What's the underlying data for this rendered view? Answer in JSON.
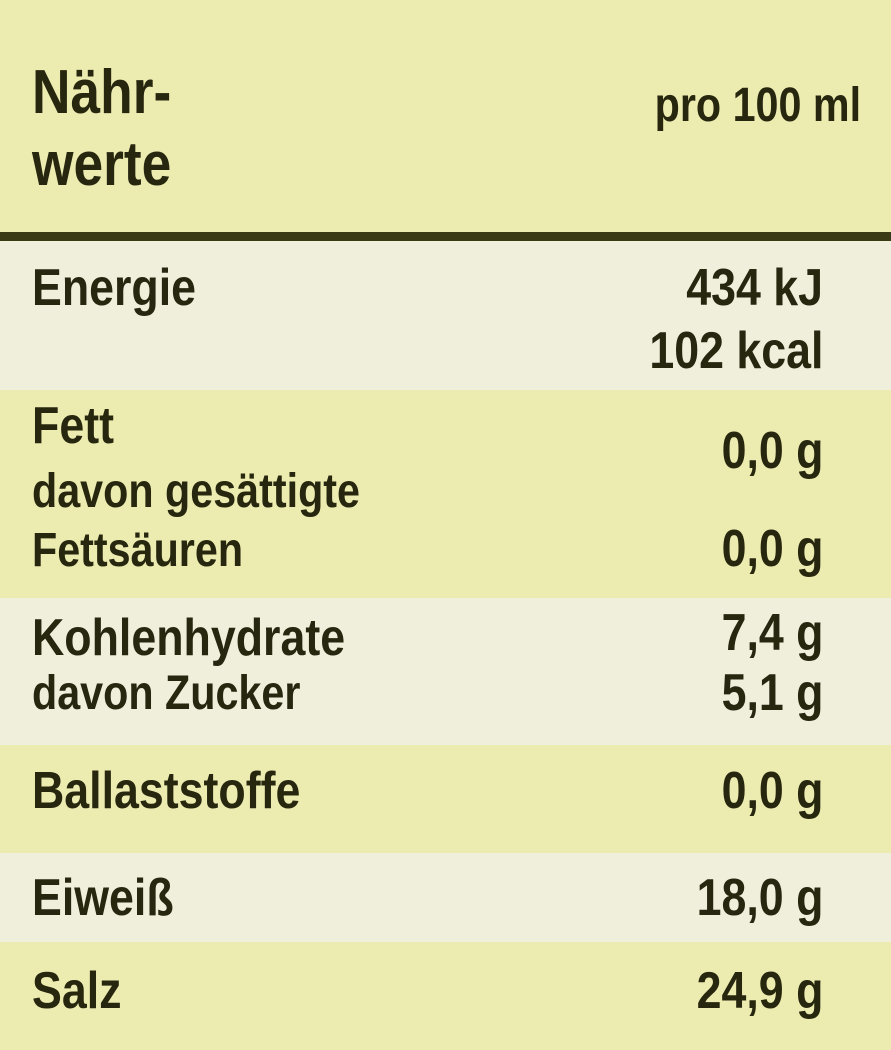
{
  "header": {
    "title_line1": "Nähr-",
    "title_line2": "werte",
    "column": "pro 100 ml"
  },
  "rows": [
    {
      "label": "Energie",
      "values": [
        "434 kJ",
        "102 kcal"
      ]
    },
    {
      "label": "Fett",
      "value": "0,0 g",
      "sub_label_line1": "davon gesättigte",
      "sub_label_line2": "Fettsäuren",
      "sub_value": "0,0 g"
    },
    {
      "label": "Kohlenhydrate",
      "value": "7,4 g",
      "sub_label": "davon Zucker",
      "sub_value": "5,1 g"
    },
    {
      "label": "Ballaststoffe",
      "value": "0,0 g"
    },
    {
      "label": "Eiweiß",
      "value": "18,0 g"
    },
    {
      "label": "Salz",
      "value": "24,9 g"
    }
  ],
  "colors": {
    "yellow": "#ecebb0",
    "light": "#efefdc",
    "text": "#27270f",
    "rule": "#3a3a14"
  }
}
